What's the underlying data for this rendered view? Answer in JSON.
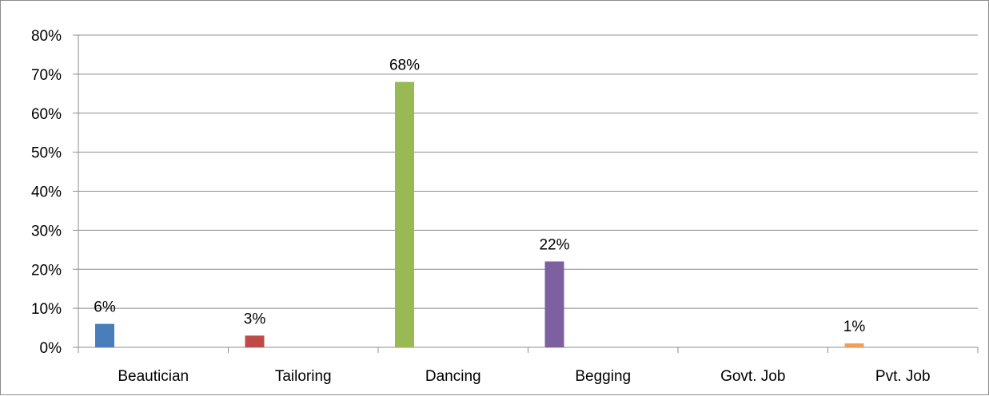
{
  "chart_data": {
    "type": "bar",
    "title": "",
    "xlabel": "",
    "ylabel": "",
    "categories": [
      "Beautician",
      "Tailoring",
      "Dancing",
      "Begging",
      "Govt. Job",
      "Pvt. Job"
    ],
    "series": [
      {
        "values": [
          6,
          3,
          68,
          22,
          0,
          1
        ],
        "labels": [
          "6%",
          "3%",
          "68%",
          "22%",
          "",
          "1%"
        ],
        "colors": [
          "#4a7ebb",
          "#be4b48",
          "#98b954",
          "#7d60a0",
          "#46aac5",
          "#f59d56"
        ]
      }
    ],
    "ylim": [
      0,
      80
    ],
    "yticks": [
      0,
      10,
      20,
      30,
      40,
      50,
      60,
      70,
      80
    ],
    "ytick_labels": [
      "0%",
      "10%",
      "20%",
      "30%",
      "40%",
      "50%",
      "60%",
      "70%",
      "80%"
    ],
    "grid": true,
    "gridline_color": "#8c8c8c",
    "axis_color": "#8c8c8c",
    "legend": "none"
  }
}
